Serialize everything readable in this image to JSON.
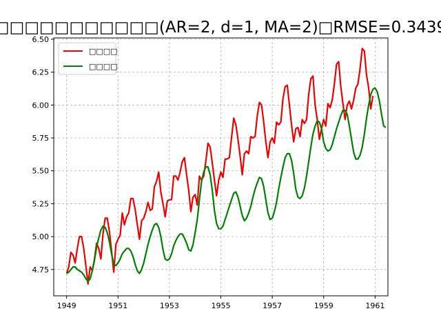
{
  "chart_data": {
    "type": "line",
    "title": "□□□□□□□□□□□(AR=2, d=1, MA=2)□RMSE=0.3439",
    "xlabel": "",
    "ylabel": "",
    "xlim": [
      1948.5,
      1961.5
    ],
    "ylim": [
      4.55,
      6.51
    ],
    "x_ticks": [
      "1949",
      "1951",
      "1953",
      "1955",
      "1957",
      "1959",
      "1961"
    ],
    "y_ticks": [
      "4.75",
      "5.00",
      "5.25",
      "5.50",
      "5.75",
      "6.00",
      "6.25",
      "6.50"
    ],
    "grid": true,
    "legend_position": "top-left",
    "x_start_year": 1949,
    "x_step_months": 1,
    "series": [
      {
        "name": "□□□□",
        "color": "#ee0000",
        "values": [
          4.72,
          4.77,
          4.88,
          4.86,
          4.8,
          4.91,
          5.0,
          5.0,
          4.91,
          4.78,
          4.64,
          4.77,
          4.74,
          4.83,
          4.95,
          4.91,
          4.83,
          5.02,
          5.14,
          5.14,
          5.04,
          4.89,
          4.73,
          4.94,
          4.98,
          5.01,
          5.18,
          5.09,
          5.15,
          5.18,
          5.29,
          5.29,
          5.21,
          5.09,
          4.98,
          5.12,
          5.14,
          5.19,
          5.26,
          5.2,
          5.21,
          5.38,
          5.42,
          5.49,
          5.34,
          5.25,
          5.15,
          5.27,
          5.28,
          5.28,
          5.46,
          5.46,
          5.43,
          5.49,
          5.57,
          5.6,
          5.47,
          5.35,
          5.19,
          5.3,
          5.32,
          5.24,
          5.46,
          5.43,
          5.46,
          5.57,
          5.71,
          5.68,
          5.56,
          5.43,
          5.31,
          5.43,
          5.49,
          5.45,
          5.59,
          5.59,
          5.6,
          5.75,
          5.9,
          5.85,
          5.74,
          5.61,
          5.47,
          5.63,
          5.65,
          5.63,
          5.76,
          5.75,
          5.76,
          5.92,
          6.02,
          6.0,
          5.87,
          5.72,
          5.6,
          5.72,
          5.75,
          5.71,
          5.87,
          5.85,
          5.87,
          6.05,
          6.14,
          6.15,
          6.0,
          5.85,
          5.72,
          5.82,
          5.83,
          5.76,
          5.89,
          5.86,
          5.89,
          6.08,
          6.2,
          6.22,
          6.0,
          5.89,
          5.74,
          5.82,
          5.89,
          5.84,
          6.01,
          5.98,
          6.04,
          6.16,
          6.31,
          6.33,
          6.14,
          6.01,
          5.89,
          6.0,
          6.03,
          5.97,
          6.04,
          6.13,
          6.16,
          6.28,
          6.43,
          6.41,
          6.23,
          6.13,
          5.97,
          6.07
        ]
      },
      {
        "name": "□□□□",
        "color": "#008000",
        "values": [
          4.72,
          4.73,
          4.75,
          4.77,
          4.77,
          4.75,
          4.74,
          4.73,
          4.71,
          4.68,
          4.66,
          4.68,
          4.74,
          4.82,
          4.92,
          4.99,
          5.05,
          5.08,
          5.07,
          5.03,
          4.96,
          4.87,
          4.79,
          4.78,
          4.8,
          4.83,
          4.87,
          4.89,
          4.91,
          4.91,
          4.89,
          4.85,
          4.79,
          4.74,
          4.72,
          4.75,
          4.8,
          4.87,
          4.94,
          5.0,
          5.05,
          5.09,
          5.1,
          5.07,
          5.0,
          4.9,
          4.83,
          4.82,
          4.83,
          4.87,
          4.93,
          4.97,
          5.0,
          5.02,
          5.02,
          4.99,
          4.95,
          4.9,
          4.89,
          4.94,
          5.03,
          5.13,
          5.28,
          5.42,
          5.49,
          5.53,
          5.53,
          5.47,
          5.35,
          5.2,
          5.1,
          5.06,
          5.06,
          5.08,
          5.13,
          5.18,
          5.23,
          5.28,
          5.33,
          5.34,
          5.3,
          5.23,
          5.16,
          5.12,
          5.14,
          5.18,
          5.23,
          5.3,
          5.36,
          5.41,
          5.45,
          5.44,
          5.38,
          5.28,
          5.18,
          5.13,
          5.14,
          5.19,
          5.26,
          5.36,
          5.45,
          5.53,
          5.6,
          5.63,
          5.63,
          5.58,
          5.48,
          5.36,
          5.3,
          5.29,
          5.31,
          5.37,
          5.46,
          5.57,
          5.68,
          5.78,
          5.84,
          5.88,
          5.87,
          5.82,
          5.72,
          5.67,
          5.65,
          5.66,
          5.7,
          5.76,
          5.82,
          5.87,
          5.92,
          5.96,
          5.96,
          5.93,
          5.84,
          5.74,
          5.64,
          5.59,
          5.59,
          5.62,
          5.68,
          5.78,
          5.9,
          6.0,
          6.08,
          6.12,
          6.13,
          6.1,
          6.03,
          5.93,
          5.84,
          5.83
        ]
      }
    ]
  }
}
